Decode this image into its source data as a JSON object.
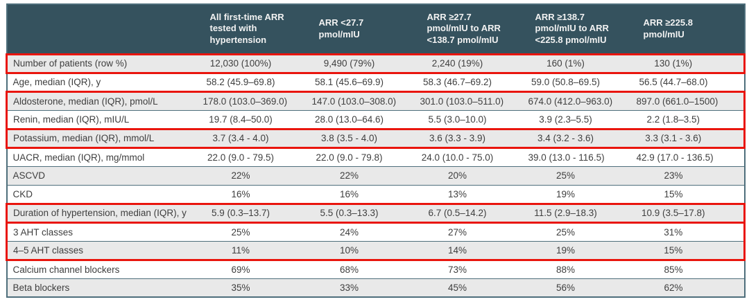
{
  "table": {
    "columns": [
      "",
      "All first-time ARR tested with hypertension",
      "ARR <27.7 pmol/mIU",
      "ARR ≥27.7 pmol/mIU to ARR <138.7 pmol/mIU",
      "ARR ≥138.7 pmol/mIU to ARR <225.8 pmol/mIU",
      "ARR ≥225.8 pmol/mIU"
    ],
    "rows": [
      {
        "label": "Number of patients (row %)",
        "values": [
          "12,030 (100%)",
          "9,490 (79%)",
          "2,240 (19%)",
          "160 (1%)",
          "130 (1%)"
        ],
        "shaded": true,
        "red_box": "full"
      },
      {
        "label": "Age, median (IQR), y",
        "values": [
          "58.2 (45.9–69.8)",
          "58.1 (45.6–69.9)",
          "58.3 (46.7–69.2)",
          "59.0 (50.8–69.5)",
          "56.5 (44.7–68.0)"
        ],
        "shaded": false,
        "red_box": "none"
      },
      {
        "label": "Aldosterone, median (IQR), pmol/L",
        "values": [
          "178.0 (103.0–369.0)",
          "147.0 (103.0–308.0)",
          "301.0 (103.0–511.0)",
          "674.0 (412.0–963.0)",
          "897.0 (661.0–1500)"
        ],
        "shaded": true,
        "red_box": "top"
      },
      {
        "label": "Renin, median (IQR), mIU/L",
        "values": [
          "19.7 (8.4–50.0)",
          "28.0 (13.0–64.6)",
          "5.5 (3.0–10.0)",
          "3.9 (2.3–5.5)",
          "2.2 (1.8–3.5)"
        ],
        "shaded": false,
        "red_box": "bottom"
      },
      {
        "label": "Potassium, median (IQR), mmol/L",
        "values": [
          "3.7 (3.4 - 4.0)",
          "3.8 (3.5 - 4.0)",
          "3.6 (3.3 - 3.9)",
          "3.4 (3.2 - 3.6)",
          "3.3 (3.1 - 3.6)"
        ],
        "shaded": true,
        "red_box": "full"
      },
      {
        "label": "UACR, median (IQR), mg/mmol",
        "values": [
          "22.0 (9.0 - 79.5)",
          "22.0 (9.0 - 79.8)",
          "24.0 (10.0 - 75.0)",
          "39.0 (13.0 - 116.5)",
          "42.9 (17.0 - 136.5)"
        ],
        "shaded": false,
        "red_box": "none"
      },
      {
        "label": "ASCVD",
        "values": [
          "22%",
          "22%",
          "20%",
          "25%",
          "23%"
        ],
        "shaded": true,
        "red_box": "none"
      },
      {
        "label": "CKD",
        "values": [
          "16%",
          "16%",
          "13%",
          "19%",
          "15%"
        ],
        "shaded": false,
        "red_box": "none"
      },
      {
        "label": "Duration of hypertension, median (IQR), y",
        "values": [
          "5.9 (0.3–13.7)",
          "5.5 (0.3–13.3)",
          "6.7 (0.5–14.2)",
          "11.5 (2.9–18.3)",
          "10.9 (3.5–17.8)"
        ],
        "shaded": true,
        "red_box": "full"
      },
      {
        "label": "3 AHT classes",
        "values": [
          "25%",
          "24%",
          "27%",
          "25%",
          "31%"
        ],
        "shaded": false,
        "red_box": "top"
      },
      {
        "label": "4–5 AHT classes",
        "values": [
          "11%",
          "10%",
          "14%",
          "19%",
          "15%"
        ],
        "shaded": true,
        "red_box": "bottom"
      },
      {
        "label": "Calcium channel blockers",
        "values": [
          "69%",
          "68%",
          "73%",
          "88%",
          "85%"
        ],
        "shaded": false,
        "red_box": "none"
      },
      {
        "label": "Beta blockers",
        "values": [
          "35%",
          "33%",
          "45%",
          "56%",
          "62%"
        ],
        "shaded": true,
        "red_box": "none"
      }
    ]
  },
  "colors": {
    "header_bg": "#35525e",
    "row_shaded_bg": "#e9e9e9",
    "table_border": "#4e6e7b",
    "highlight_red": "#e9150d",
    "body_text": "#3e3e3e",
    "header_text": "#f2f2f2"
  }
}
